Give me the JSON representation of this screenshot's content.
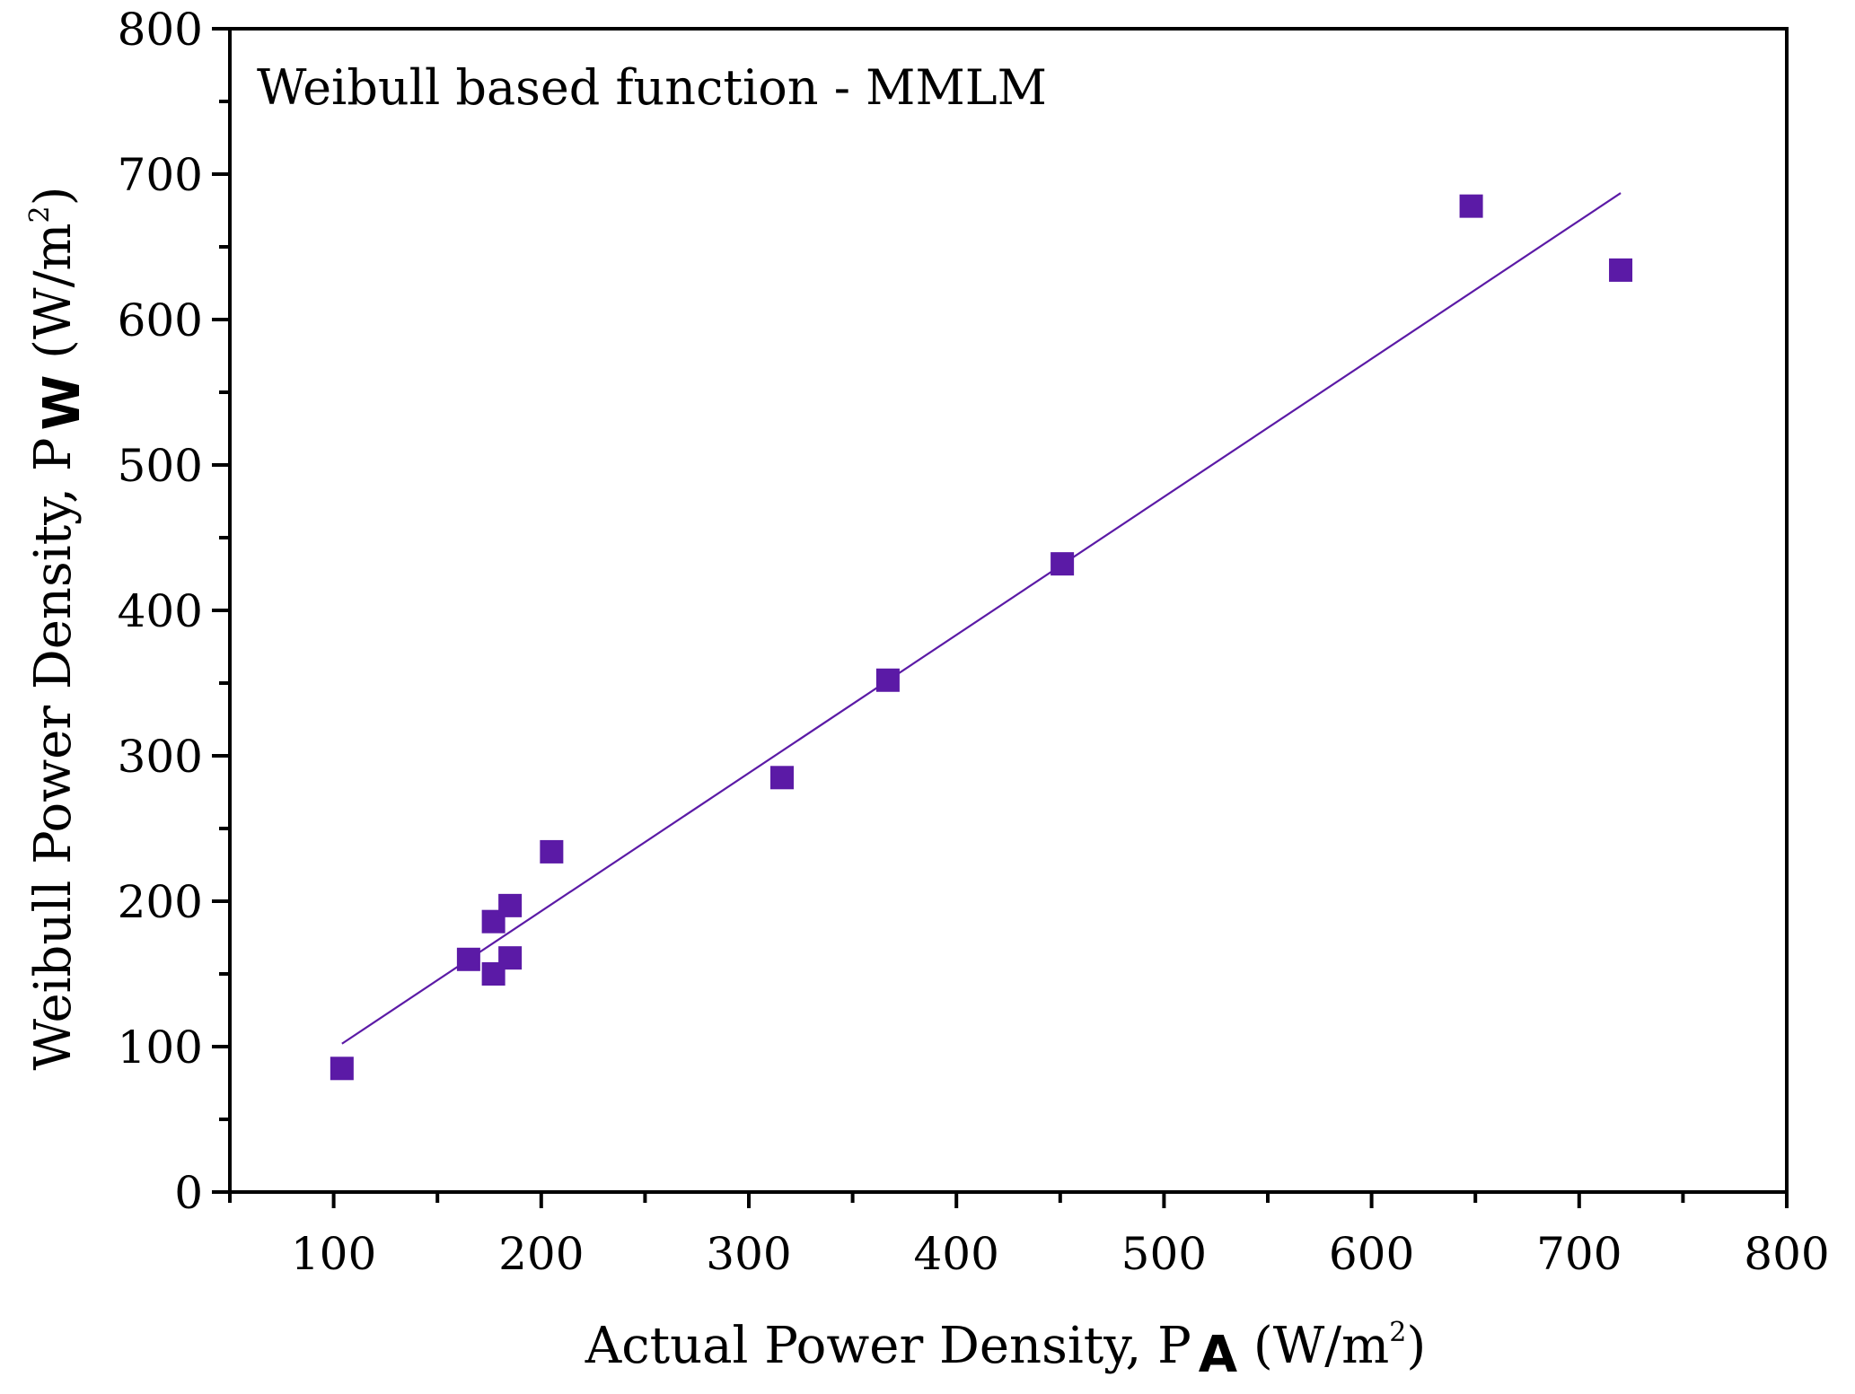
{
  "chart_data": {
    "type": "scatter",
    "title": "",
    "annotation": "Weibull based function - MMLM",
    "xlabel": {
      "main": "Actual Power Density, P",
      "sub": "A",
      "unit_open": " (W/m",
      "sup": "2",
      "unit_close": ")"
    },
    "ylabel": {
      "main": "Weibull Power Density, P",
      "sub": "W",
      "unit_open": " (W/m",
      "sup": "2",
      "unit_close": ")"
    },
    "xlim": [
      50,
      800
    ],
    "ylim": [
      0,
      800
    ],
    "xticks": [
      100,
      200,
      300,
      400,
      500,
      600,
      700,
      800
    ],
    "yticks": [
      0,
      100,
      200,
      300,
      400,
      500,
      600,
      700,
      800
    ],
    "x_minor_step": 50,
    "y_minor_step": 50,
    "grid": false,
    "colors": {
      "marker": "#5b1aa6",
      "fit_line": "#5b1aa6",
      "axis": "#000000"
    },
    "series": [
      {
        "name": "data",
        "points": [
          {
            "x": 104,
            "y": 85
          },
          {
            "x": 165,
            "y": 160
          },
          {
            "x": 177,
            "y": 150
          },
          {
            "x": 177,
            "y": 186
          },
          {
            "x": 185,
            "y": 197
          },
          {
            "x": 185,
            "y": 161
          },
          {
            "x": 205,
            "y": 234
          },
          {
            "x": 316,
            "y": 285
          },
          {
            "x": 367,
            "y": 352
          },
          {
            "x": 451,
            "y": 432
          },
          {
            "x": 648,
            "y": 678
          },
          {
            "x": 720,
            "y": 634
          }
        ]
      }
    ],
    "fit_line": {
      "x": [
        104,
        720
      ],
      "y": [
        102,
        687
      ]
    }
  }
}
